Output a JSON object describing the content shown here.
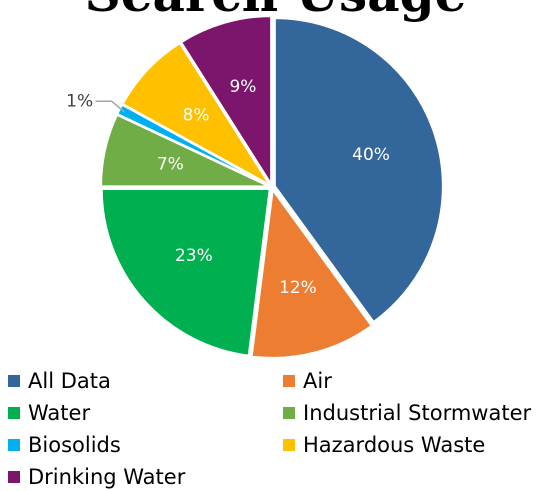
{
  "chart_data": {
    "type": "pie",
    "title": "Search Usage",
    "slices": [
      {
        "label": "All Data",
        "value": 40,
        "display": "40%",
        "color": "#33669A"
      },
      {
        "label": "Air",
        "value": 12,
        "display": "12%",
        "color": "#ED7D31"
      },
      {
        "label": "Water",
        "value": 23,
        "display": "23%",
        "color": "#00B050"
      },
      {
        "label": "Industrial Stormwater",
        "value": 7,
        "display": "7%",
        "color": "#70AD47"
      },
      {
        "label": "Biosolids",
        "value": 1,
        "display": "1%",
        "color": "#00B0F0"
      },
      {
        "label": "Hazardous Waste",
        "value": 8,
        "display": "8%",
        "color": "#FFC000"
      },
      {
        "label": "Drinking Water",
        "value": 9,
        "display": "9%",
        "color": "#7B166C"
      }
    ],
    "legend_position": "bottom"
  }
}
